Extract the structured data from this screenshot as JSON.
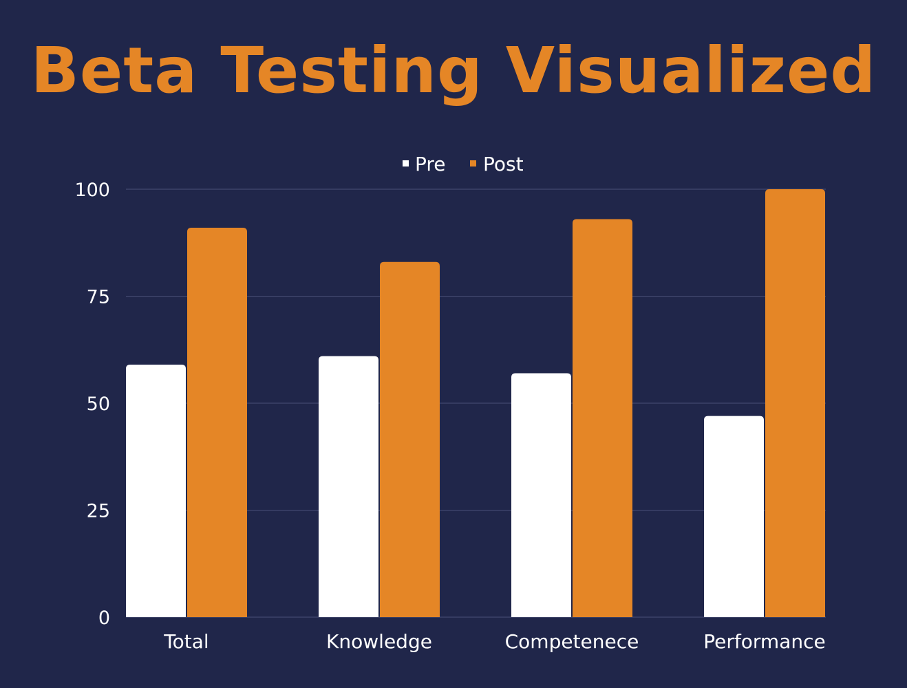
{
  "title": "Beta Testing Visualized",
  "colors": {
    "background": "#20264a",
    "accent": "#e58626",
    "pre": "#ffffff",
    "post": "#e58626",
    "gridline": "#4a5078"
  },
  "chart_data": {
    "type": "bar",
    "categories": [
      "Total",
      "Knowledge",
      "Competenece",
      "Performance"
    ],
    "series": [
      {
        "name": "Pre",
        "color": "#ffffff",
        "values": [
          59,
          61,
          57,
          47
        ]
      },
      {
        "name": "Post",
        "color": "#e58626",
        "values": [
          91,
          83,
          93,
          100
        ]
      }
    ],
    "ylim": [
      0,
      100
    ],
    "yticks": [
      0,
      25,
      50,
      75,
      100
    ],
    "grid": true,
    "legend_position": "top-center"
  }
}
